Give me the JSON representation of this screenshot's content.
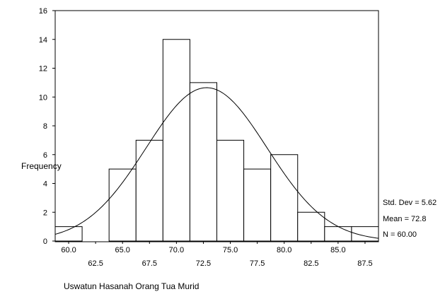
{
  "chart_data": {
    "type": "histogram",
    "xlabel": "Uswatun Hasanah Orang Tua Murid",
    "ylabel": "Frequency",
    "ylim": [
      0,
      16
    ],
    "xlim": [
      58.75,
      88.75
    ],
    "y_ticks": [
      "0",
      "2",
      "4",
      "6",
      "8",
      "10",
      "12",
      "14",
      "16"
    ],
    "x_tick_labels_upper": [
      "60.0",
      "65.0",
      "70.0",
      "75.0",
      "80.0",
      "85.0"
    ],
    "x_tick_labels_lower": [
      "62.5",
      "67.5",
      "72.5",
      "77.5",
      "82.5",
      "87.5"
    ],
    "bin_width": 2.5,
    "bins": [
      {
        "center": 60.0,
        "count": 1
      },
      {
        "center": 62.5,
        "count": 0
      },
      {
        "center": 65.0,
        "count": 5
      },
      {
        "center": 67.5,
        "count": 7
      },
      {
        "center": 70.0,
        "count": 14
      },
      {
        "center": 72.5,
        "count": 11
      },
      {
        "center": 75.0,
        "count": 7
      },
      {
        "center": 77.5,
        "count": 5
      },
      {
        "center": 80.0,
        "count": 6
      },
      {
        "center": 82.5,
        "count": 2
      },
      {
        "center": 85.0,
        "count": 1
      },
      {
        "center": 87.5,
        "count": 1
      }
    ],
    "normal_curve": {
      "mean": 72.8,
      "std": 5.62,
      "n": 60
    },
    "stats": {
      "std": "Std. Dev = 5.62",
      "mean": "Mean = 72.8",
      "n": "N = 60.00"
    }
  }
}
